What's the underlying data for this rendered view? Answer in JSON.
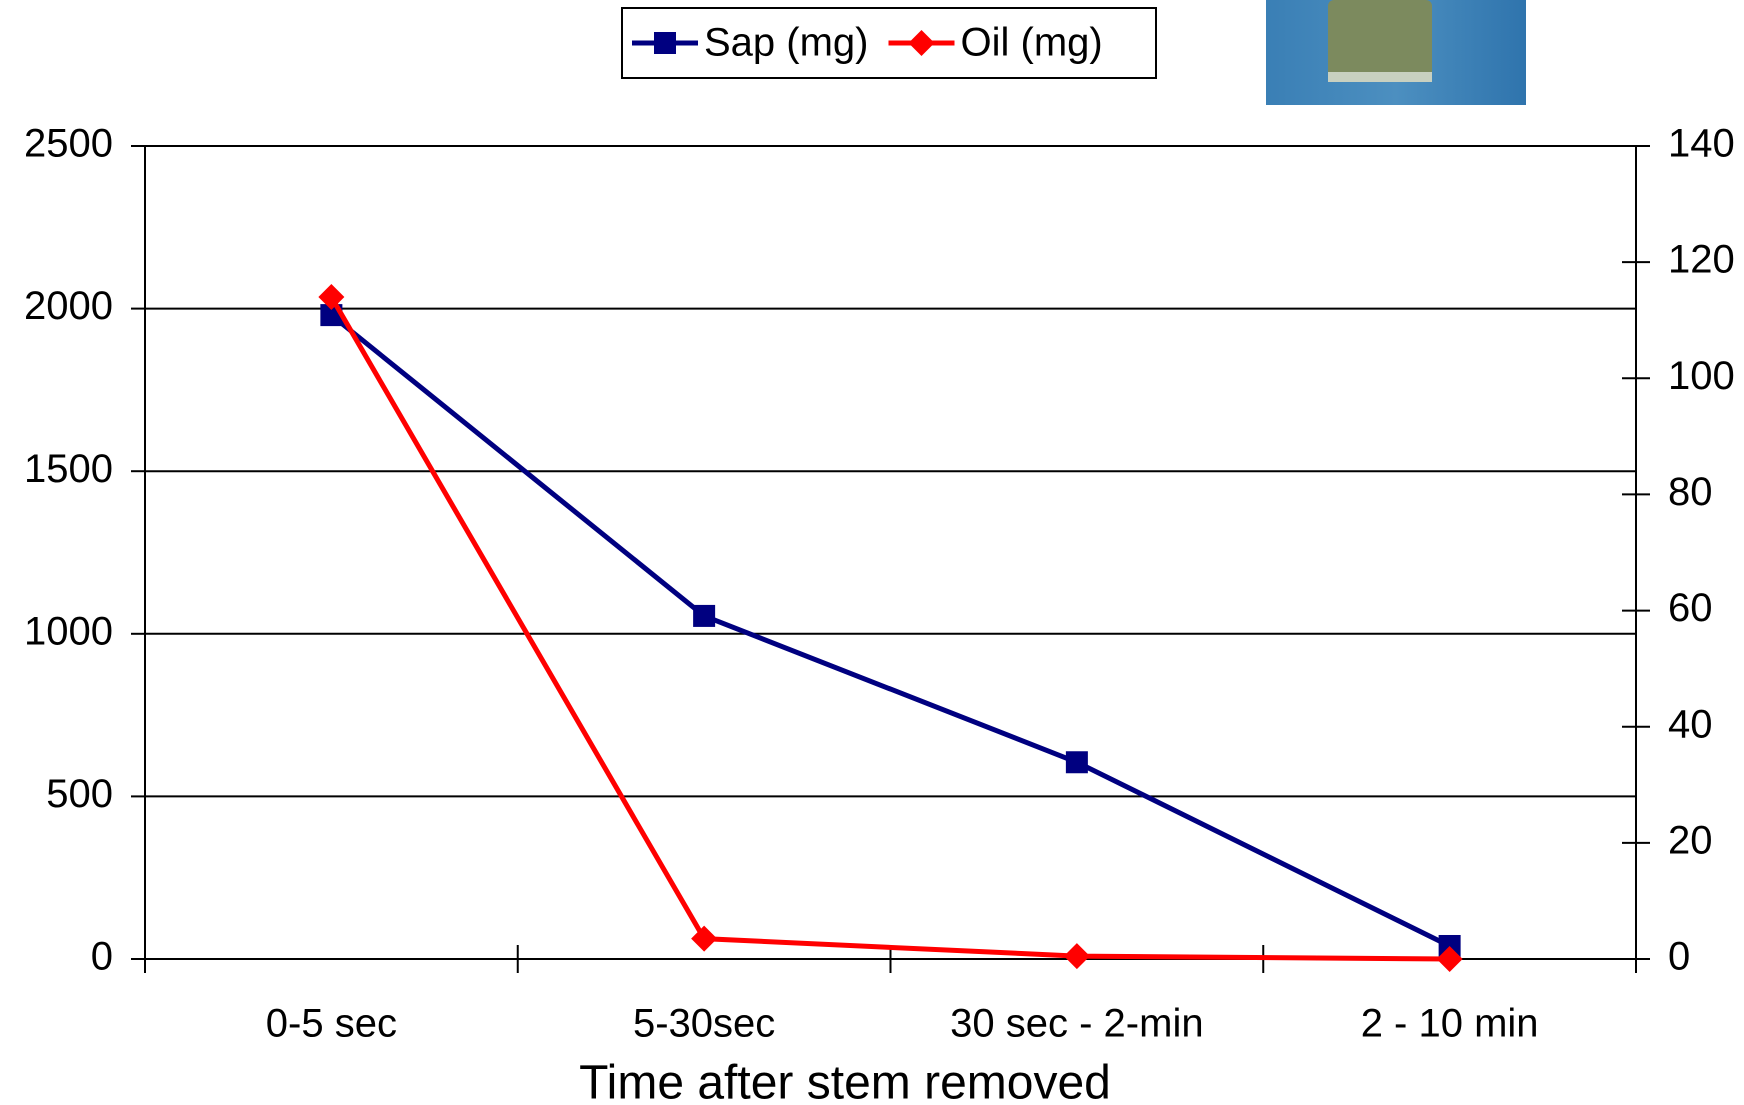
{
  "chart_data": {
    "type": "line",
    "x_label": "Time after stem removed",
    "categories": [
      "0-5 sec",
      "5-30sec",
      "30 sec - 2-min",
      "2 - 10 min"
    ],
    "series": [
      {
        "name": "Sap (mg)",
        "color": "#000080",
        "marker": "square",
        "values": [
          1980,
          1055,
          605,
          40
        ]
      },
      {
        "name": "Oil (mg)",
        "color": "#ff0000",
        "marker": "diamond",
        "axis": "y2",
        "values": [
          114,
          3.5,
          0.5,
          0
        ]
      }
    ],
    "ylim": [
      0,
      2500
    ],
    "yticks": [
      0,
      500,
      1000,
      1500,
      2000,
      2500
    ],
    "y2lim": [
      0,
      140
    ],
    "y2ticks": [
      0,
      20,
      40,
      60,
      80,
      100,
      120,
      140
    ],
    "grid": true,
    "legend": "top"
  }
}
